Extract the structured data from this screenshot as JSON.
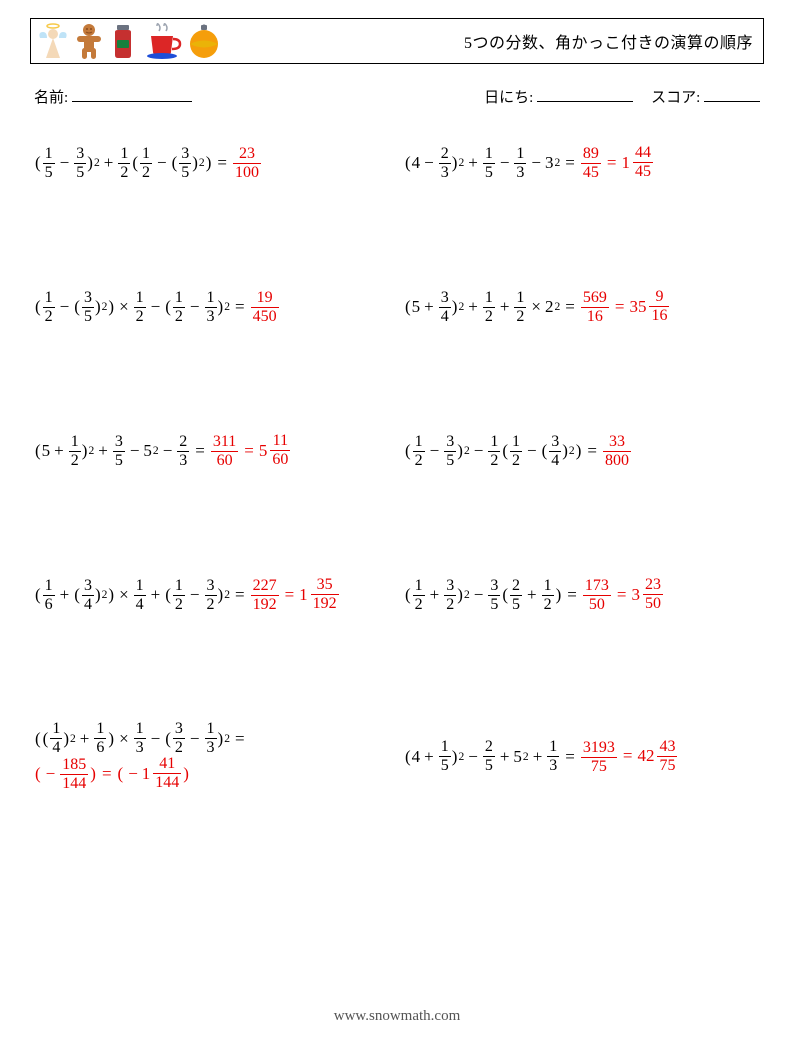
{
  "title": "5つの分数、角かっこ付きの演算の順序",
  "labels": {
    "name": "名前:",
    "date": "日にち:",
    "score": "スコア:"
  },
  "footer": "www.snowmath.com",
  "icon_colors": {
    "angel_body": "#f4d9b8",
    "angel_wing": "#bfe3f7",
    "angel_halo": "#f7c948",
    "ginger": "#c47a3a",
    "ginger_dark": "#8a4b1e",
    "jar": "#c53030",
    "jar_lid": "#6b7280",
    "jar_label": "#15803d",
    "cup": "#dc2626",
    "saucer": "#1d4ed8",
    "steam": "#9ca3af",
    "ball": "#f59e0b",
    "ball_top": "#6b7280",
    "ball_stripe": "#eab308"
  },
  "problems": [
    {
      "lhs": "( {1/5} − {3/5} )^2 + {1/2} ( {1/2} − ( {3/5} )^2 )",
      "ans": "{23/100}"
    },
    {
      "lhs": "( 4 − {2/3} )^2 + {1/5} − {1/3} − 3^2",
      "ans": "{89/45} = [1 {44/45}]"
    },
    {
      "lhs": "( {1/2} − ( {3/5} )^2 ) × {1/2} − ( {1/2} − {1/3} )^2",
      "ans": "{19/450}"
    },
    {
      "lhs": "( 5 + {3/4} )^2 + {1/2} + {1/2} × 2^2",
      "ans": "{569/16} = [35 {9/16}]"
    },
    {
      "lhs": "( 5 + {1/2} )^2 + {3/5} − 5^2 − {2/3}",
      "ans": "{311/60} = [5 {11/60}]"
    },
    {
      "lhs": "( {1/2} − {3/5} )^2 − {1/2} ( {1/2} − ( {3/4} )^2 )",
      "ans": "{33/800}"
    },
    {
      "lhs": "( {1/6} + ( {3/4} )^2 ) × {1/4} + ( {1/2} − {3/2} )^2",
      "ans": "{227/192} = [1 {35/192}]"
    },
    {
      "lhs": "( {1/2} + {3/2} )^2 − {3/5} ( {2/5} + {1/2} )",
      "ans": "{173/50} = [3 {23/50}]"
    },
    {
      "lhs": "( ( {1/4} )^2 + {1/6} ) × {1/3} − ( {3/2} − {1/3} )^2",
      "ans": "( − {185/144} ) = ( − [1 {41/144}] )"
    },
    {
      "lhs": "( 4 + {1/5} )^2 − {2/5} + 5^2 + {1/3}",
      "ans": "{3193/75} = [42 {43/75}]"
    }
  ]
}
